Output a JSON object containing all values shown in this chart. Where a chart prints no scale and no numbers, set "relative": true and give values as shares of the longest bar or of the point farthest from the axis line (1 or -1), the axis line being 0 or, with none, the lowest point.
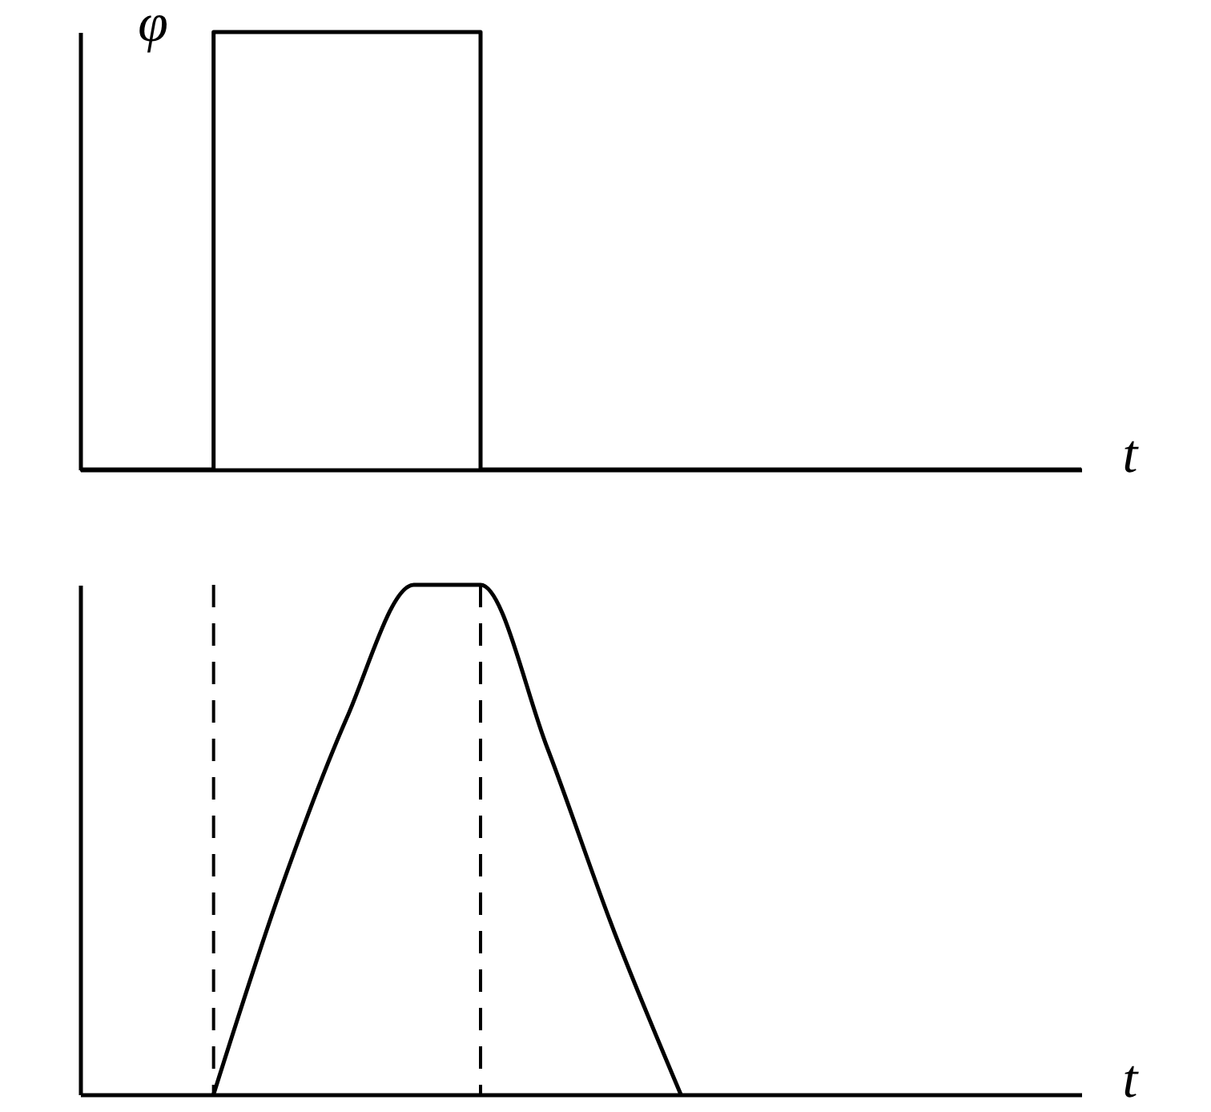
{
  "chart_data": [
    {
      "type": "step",
      "relative": true,
      "ylabel": "φ",
      "xlabel": "t",
      "categories": [
        null,
        null,
        null,
        null,
        null,
        null,
        null,
        null,
        null,
        null,
        null,
        null,
        null,
        null,
        null,
        null
      ],
      "values": [
        0,
        0,
        1,
        1,
        1,
        1,
        0,
        0,
        0,
        0,
        0,
        0,
        0,
        0,
        0,
        0
      ],
      "color": "#000000"
    },
    {
      "type": "line",
      "relative": true,
      "xlabel": "t",
      "categories": [
        null,
        null,
        null,
        null,
        null,
        null,
        null,
        null,
        null,
        null,
        null,
        null,
        null,
        null,
        null,
        null
      ],
      "values": [
        null,
        null,
        0,
        0.4,
        0.74,
        1,
        1,
        0.68,
        0.32,
        0,
        null,
        null,
        null,
        null,
        null,
        null
      ],
      "color": "#000000"
    }
  ]
}
